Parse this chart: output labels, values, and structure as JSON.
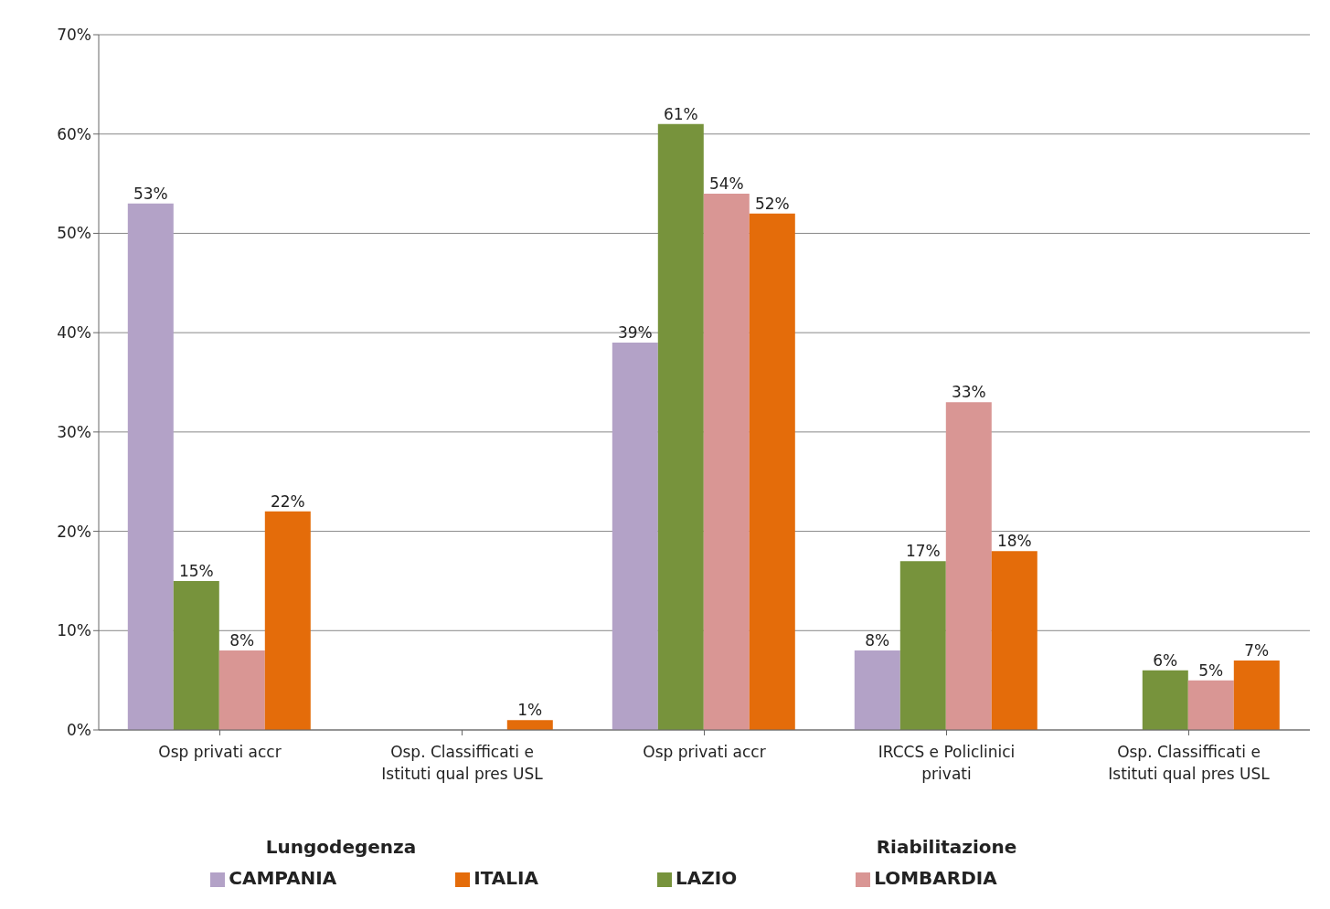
{
  "chart_data": {
    "type": "bar",
    "categories": [
      "Osp privati accr",
      "Osp. Classifficati e Istituti qual pres USL",
      "Osp privati accr",
      "IRCCS e Policlinici privati",
      "Osp. Classifficati e Istituti qual pres USL"
    ],
    "annotations": [
      "Lungodegenza",
      "Riabilitazione"
    ],
    "series": [
      {
        "name": "CAMPANIA",
        "color": "#b3a2c7",
        "values": [
          53,
          null,
          39,
          8,
          null
        ],
        "value_labels": [
          "53%",
          null,
          "39%",
          "8%",
          null
        ]
      },
      {
        "name": "LAZIO",
        "color": "#77933c",
        "values": [
          15,
          null,
          61,
          17,
          6
        ],
        "value_labels": [
          "15%",
          null,
          "61%",
          "17%",
          "6%"
        ]
      },
      {
        "name": "LOMBARDIA",
        "color": "#d99694",
        "values": [
          8,
          null,
          54,
          33,
          5
        ],
        "value_labels": [
          "8%",
          null,
          "54%",
          "33%",
          "5%"
        ]
      },
      {
        "name": "ITALIA",
        "color": "#e46c0a",
        "values": [
          22,
          1,
          52,
          18,
          7
        ],
        "value_labels": [
          "22%",
          "1%",
          "52%",
          "18%",
          "7%"
        ]
      }
    ],
    "ylim": [
      0,
      70
    ],
    "yticks": [
      {
        "value": 0,
        "label": "0%"
      },
      {
        "value": 10,
        "label": "10%"
      },
      {
        "value": 20,
        "label": "20%"
      },
      {
        "value": 30,
        "label": "30%"
      },
      {
        "value": 40,
        "label": "40%"
      },
      {
        "value": 50,
        "label": "50%"
      },
      {
        "value": 60,
        "label": "60%"
      },
      {
        "value": 70,
        "label": "70%"
      }
    ],
    "grid": "y",
    "legend": "bottom"
  }
}
